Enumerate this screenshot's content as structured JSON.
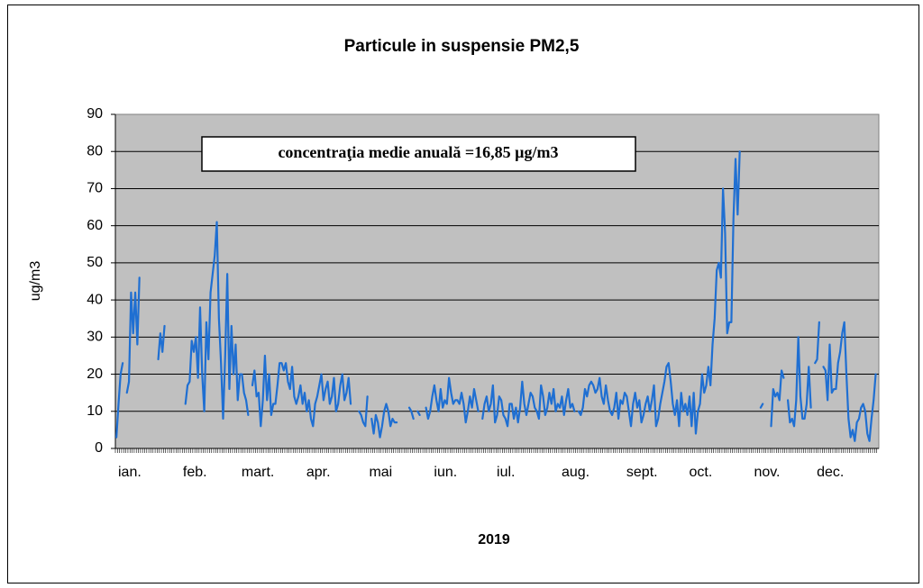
{
  "chart_data": {
    "type": "line",
    "title": "Particule in suspensie PM2,5",
    "annotation": "concentraţia medie anuală  =16,85 µg/m3",
    "x_label": "2019",
    "y_label": "ug/m3",
    "ylim": [
      0,
      90
    ],
    "yticks": [
      0,
      10,
      20,
      30,
      40,
      50,
      60,
      70,
      80,
      90
    ],
    "grid": true,
    "categories": [
      "ian.",
      null,
      null,
      null,
      null,
      null,
      null,
      null,
      null,
      null,
      null,
      null,
      null,
      null,
      null,
      null,
      null,
      null,
      null,
      null,
      null,
      null,
      null,
      null,
      null,
      null,
      null,
      null,
      null,
      null,
      null,
      "feb.",
      null,
      null,
      null,
      null,
      null,
      null,
      null,
      null,
      null,
      null,
      null,
      null,
      null,
      null,
      null,
      null,
      null,
      null,
      null,
      null,
      null,
      null,
      null,
      null,
      null,
      null,
      null,
      "mart.",
      null,
      null,
      null,
      null,
      null,
      null,
      null,
      null,
      null,
      null,
      null,
      null,
      null,
      null,
      null,
      null,
      null,
      null,
      null,
      null,
      null,
      null,
      null,
      null,
      null,
      null,
      null,
      null,
      null,
      null,
      "apr.",
      null,
      null,
      null,
      null,
      null,
      null,
      null,
      null,
      null,
      null,
      null,
      null,
      null,
      null,
      null,
      null,
      null,
      null,
      null,
      null,
      null,
      null,
      null,
      null,
      null,
      null,
      null,
      null,
      null,
      "mai",
      null,
      null,
      null,
      null,
      null,
      null,
      null,
      null,
      null,
      null,
      null,
      null,
      null,
      null,
      null,
      null,
      null,
      null,
      null,
      null,
      null,
      null,
      null,
      null,
      null,
      null,
      null,
      null,
      null,
      null,
      "iun.",
      null,
      null,
      null,
      null,
      null,
      null,
      null,
      null,
      null,
      null,
      null,
      null,
      null,
      null,
      null,
      null,
      null,
      null,
      null,
      null,
      null,
      null,
      null,
      null,
      null,
      null,
      null,
      null,
      null,
      "iul.",
      null,
      null,
      null,
      null,
      null,
      null,
      null,
      null,
      null,
      null,
      null,
      null,
      null,
      null,
      null,
      null,
      null,
      null,
      null,
      null,
      null,
      null,
      null,
      null,
      null,
      null,
      null,
      null,
      null,
      null,
      "aug.",
      null,
      null,
      null,
      null,
      null,
      null,
      null,
      null,
      null,
      null,
      null,
      null,
      null,
      null,
      null,
      null,
      null,
      null,
      null,
      null,
      null,
      null,
      null,
      null,
      null,
      null,
      null,
      null,
      null,
      null,
      "sept.",
      null,
      null,
      null,
      null,
      null,
      null,
      null,
      null,
      null,
      null,
      null,
      null,
      null,
      null,
      null,
      null,
      null,
      null,
      null,
      null,
      null,
      null,
      null,
      null,
      null,
      null,
      null,
      null,
      null,
      "oct.",
      null,
      null,
      null,
      null,
      null,
      null,
      null,
      null,
      null,
      null,
      null,
      null,
      null,
      null,
      null,
      null,
      null,
      null,
      null,
      null,
      null,
      null,
      null,
      null,
      null,
      null,
      null,
      null,
      null,
      null,
      "nov.",
      null,
      null,
      null,
      null,
      null,
      null,
      null,
      null,
      null,
      null,
      null,
      null,
      null,
      null,
      null,
      null,
      null,
      null,
      null,
      null,
      null,
      null,
      null,
      null,
      null,
      null,
      null,
      null,
      null,
      "dec.",
      null,
      null,
      null,
      null,
      null,
      null,
      null,
      null,
      null,
      null,
      null,
      null,
      null,
      null,
      null,
      null,
      null,
      null,
      null,
      null,
      null,
      null,
      null,
      null,
      null,
      null,
      null,
      null,
      null,
      null
    ],
    "series": [
      {
        "color": "#1f6fd2",
        "values": [
          3,
          12,
          20,
          23,
          null,
          15,
          18,
          42,
          31,
          42,
          28,
          46,
          null,
          null,
          null,
          null,
          null,
          null,
          null,
          null,
          24,
          31,
          26,
          33,
          null,
          null,
          null,
          null,
          null,
          null,
          null,
          null,
          null,
          12,
          17,
          18,
          29,
          26,
          30,
          19,
          38,
          20,
          10,
          34,
          24,
          42,
          47,
          52,
          61,
          35,
          23,
          8,
          25,
          47,
          16,
          33,
          20,
          28,
          13,
          20,
          20,
          15,
          13,
          9,
          null,
          17,
          21,
          14,
          15,
          6,
          13,
          25,
          13,
          20,
          9,
          12,
          12,
          17,
          23,
          23,
          21,
          23,
          18,
          16,
          22,
          14,
          12,
          14,
          17,
          12,
          15,
          10,
          13,
          8,
          6,
          12,
          14,
          17,
          20,
          13,
          16,
          18,
          12,
          14,
          19,
          10,
          12,
          17,
          20,
          13,
          15,
          19,
          12,
          null,
          null,
          null,
          10,
          9,
          7,
          6,
          14,
          null,
          8,
          4,
          9,
          7,
          3,
          6,
          10,
          12,
          10,
          6,
          8,
          7,
          7,
          null,
          null,
          null,
          null,
          null,
          11,
          10,
          8,
          null,
          10,
          9,
          null,
          null,
          11,
          8,
          10,
          14,
          17,
          13,
          10,
          16,
          11,
          13,
          12,
          19,
          15,
          12,
          13,
          13,
          12,
          15,
          12,
          7,
          10,
          14,
          11,
          16,
          13,
          10,
          null,
          8,
          12,
          14,
          10,
          12,
          17,
          7,
          9,
          14,
          13,
          9,
          8,
          6,
          12,
          12,
          8,
          11,
          7,
          11,
          18,
          12,
          9,
          12,
          15,
          14,
          11,
          10,
          8,
          17,
          14,
          9,
          11,
          15,
          12,
          16,
          10,
          12,
          11,
          14,
          9,
          13,
          16,
          11,
          12,
          10,
          null,
          10,
          9,
          11,
          16,
          14,
          17,
          18,
          17,
          15,
          16,
          19,
          14,
          12,
          17,
          13,
          10,
          9,
          11,
          15,
          8,
          13,
          12,
          15,
          14,
          10,
          6,
          12,
          15,
          11,
          13,
          7,
          9,
          12,
          14,
          10,
          13,
          17,
          6,
          8,
          12,
          15,
          18,
          22,
          23,
          18,
          12,
          9,
          13,
          6,
          15,
          10,
          12,
          9,
          14,
          6,
          15,
          4,
          10,
          12,
          20,
          15,
          17,
          22,
          17,
          28,
          35,
          48,
          50,
          46,
          70,
          58,
          31,
          34,
          34,
          62,
          78,
          63,
          80,
          null,
          null,
          null,
          null,
          null,
          null,
          null,
          null,
          null,
          11,
          12,
          null,
          null,
          null,
          6,
          16,
          14,
          15,
          13,
          21,
          19,
          null,
          13,
          7,
          8,
          6,
          13,
          30,
          14,
          8,
          8,
          12,
          22,
          11,
          null,
          23,
          24,
          34,
          null,
          22,
          21,
          13,
          28,
          15,
          16,
          16,
          23,
          26,
          31,
          34,
          20,
          8,
          3,
          5,
          2,
          7,
          8,
          11,
          12,
          10,
          4,
          2,
          8,
          13,
          20,
          null
        ]
      }
    ]
  }
}
